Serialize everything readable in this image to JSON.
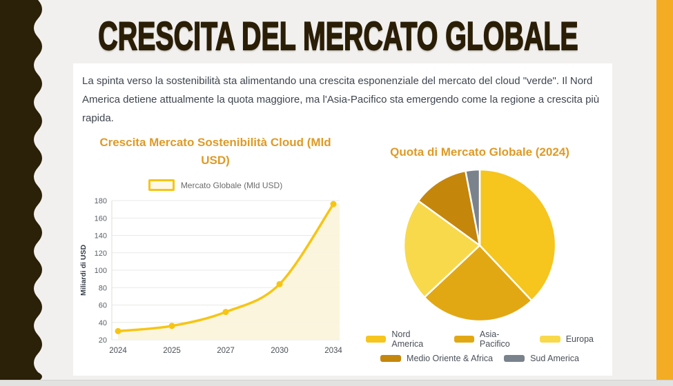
{
  "slide": {
    "title": "CRESCITA DEL MERCATO GLOBALE",
    "intro": "La spinta verso la sostenibilità sta alimentando una crescita esponenziale del mercato del cloud \"verde\". Il Nord America detiene attualmente la quota maggiore, ma l'Asia-Pacifico sta emergendo come la regione a crescita più rapida."
  },
  "theme": {
    "background": "#F1F0EE",
    "panel": "#FFFFFF",
    "left_wave_color": "#2B2008",
    "right_bar_color": "#F4AC25",
    "main_title_color": "#2B1E06",
    "chart_title_color": "#DE9A26",
    "accent_gold": "#F6C514"
  },
  "chart_data": [
    {
      "type": "line",
      "title": "Crescita Mercato Sostenibilità Cloud (Mld USD)",
      "x": [
        "2024",
        "2025",
        "2027",
        "2030",
        "2034"
      ],
      "series": [
        {
          "name": "Mercato Globale (Mld USD)",
          "values": [
            30,
            36,
            52,
            84,
            176
          ]
        }
      ],
      "xlabel": "",
      "ylabel": "Miliardi di USD",
      "ylim": [
        20,
        180
      ],
      "ytick_step": 20,
      "grid": true,
      "legend_position": "top",
      "line_color": "#F6C514",
      "fill_color": "#FBF4DC",
      "legend_swatch_fill": "#FDF8E8"
    },
    {
      "type": "pie",
      "title": "Quota di Mercato Globale (2024)",
      "labels": [
        "Nord America",
        "Asia-Pacifico",
        "Europa",
        "Medio Oriente & Africa",
        "Sud America"
      ],
      "values": [
        38,
        25,
        22,
        12,
        3
      ],
      "colors": [
        "#F6C51E",
        "#E2A814",
        "#F8D94B",
        "#C5860C",
        "#7A828C"
      ],
      "legend_position": "bottom",
      "start_angle_deg": 0,
      "note": "values are percentages estimated from slice angles; no data labels shown in chart"
    }
  ]
}
